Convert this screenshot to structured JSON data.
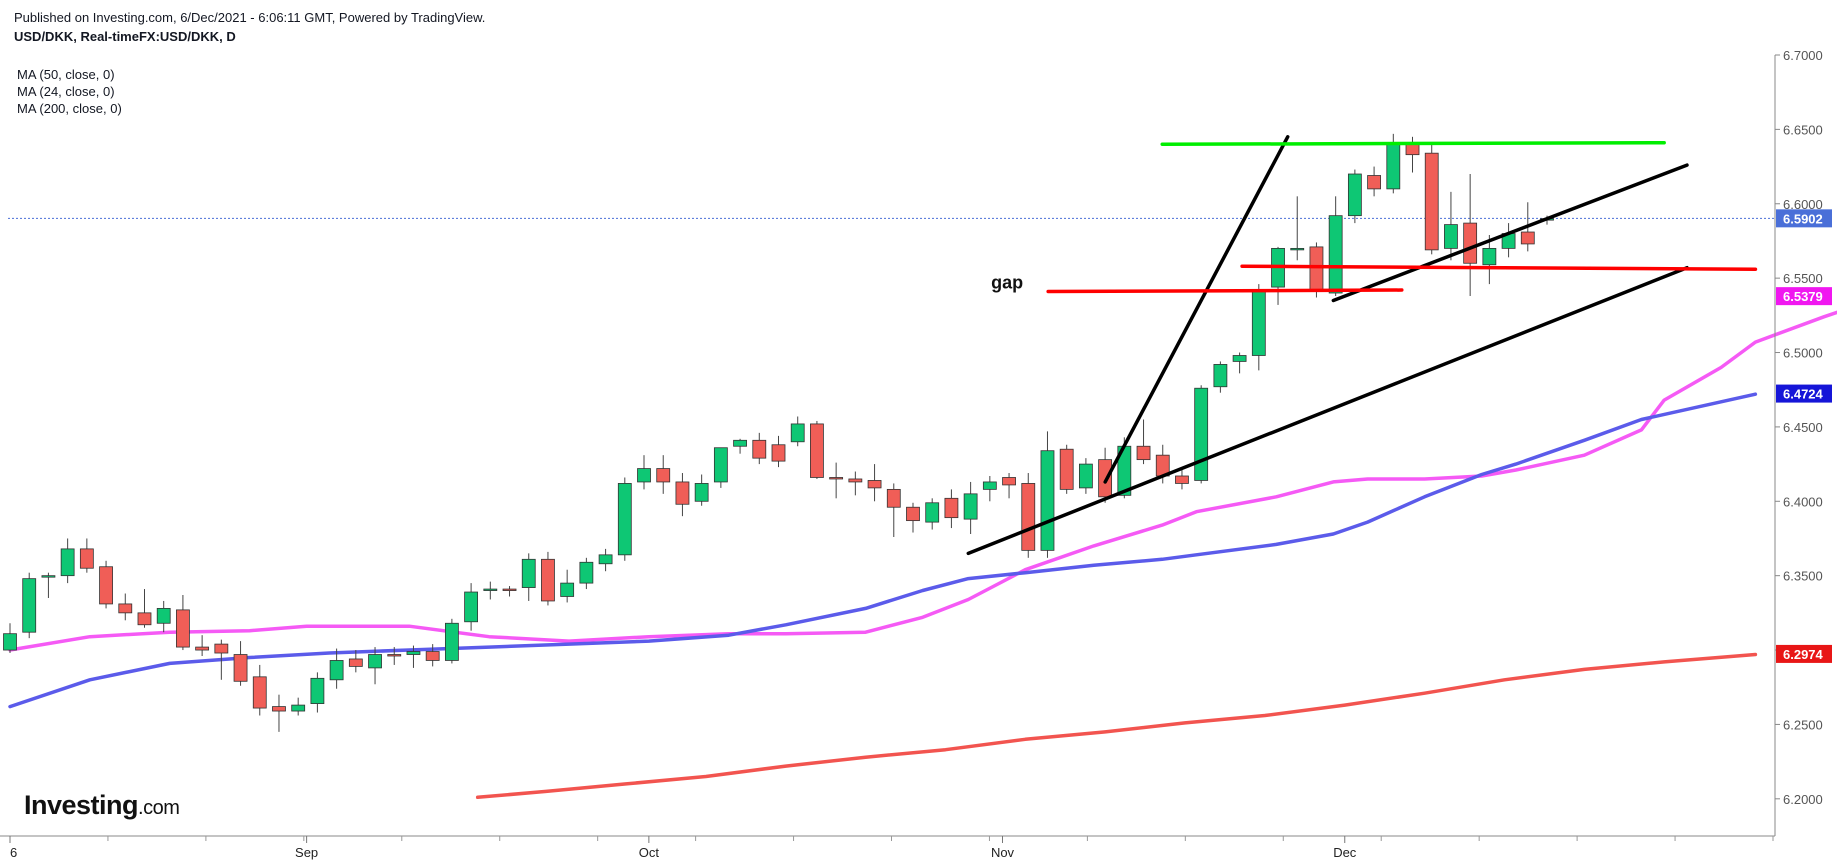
{
  "header": {
    "published": "Published on Investing.com, 6/Dec/2021 - 6:06:11 GMT, Powered by TradingView.",
    "symbol": "USD/DKK, Real-timeFX:USD/DKK, D"
  },
  "indicators": [
    {
      "label": "MA (50, close, 0)",
      "color": "#5b5bea"
    },
    {
      "label": "MA (24, close, 0)",
      "color": "#f55af5"
    },
    {
      "label": "MA (200, close, 0)",
      "color": "#f2544f"
    }
  ],
  "logo": {
    "name": "Investing",
    "suffix": ".com"
  },
  "chart_data": {
    "type": "candlestick",
    "title": "USD/DKK, Real-timeFX:USD/DKK, D",
    "x_ticks": [
      {
        "label": "6",
        "date": "2021-08-06"
      },
      {
        "label": "Sep",
        "date": "2021-09-01"
      },
      {
        "label": "Oct",
        "date": "2021-10-01"
      },
      {
        "label": "Nov",
        "date": "2021-11-01"
      },
      {
        "label": "Dec",
        "date": "2021-12-01"
      }
    ],
    "x_range": [
      "2021-08-06",
      "2021-12-31"
    ],
    "y_ticks": [
      "6.7000",
      "6.6500",
      "6.6000",
      "6.5500",
      "6.5000",
      "6.4500",
      "6.4000",
      "6.3500",
      "6.3000",
      "6.2500",
      "6.2000"
    ],
    "ylim": [
      6.175,
      6.7
    ],
    "last_price": "6.5902",
    "price_badges": [
      {
        "value": "6.5902",
        "color": "#4a6fd8"
      },
      {
        "value": "6.5379",
        "color": "#f017f0"
      },
      {
        "value": "6.4724",
        "color": "#1515d8"
      },
      {
        "value": "6.2974",
        "color": "#e81616"
      }
    ],
    "candles": [
      {
        "date": "2021-08-06",
        "o": 6.3,
        "h": 6.318,
        "l": 6.298,
        "c": 6.311
      },
      {
        "date": "2021-08-09",
        "o": 6.312,
        "h": 6.352,
        "l": 6.308,
        "c": 6.348
      },
      {
        "date": "2021-08-10",
        "o": 6.349,
        "h": 6.352,
        "l": 6.335,
        "c": 6.35
      },
      {
        "date": "2021-08-11",
        "o": 6.35,
        "h": 6.375,
        "l": 6.345,
        "c": 6.368
      },
      {
        "date": "2021-08-12",
        "o": 6.368,
        "h": 6.375,
        "l": 6.352,
        "c": 6.355
      },
      {
        "date": "2021-08-13",
        "o": 6.356,
        "h": 6.36,
        "l": 6.328,
        "c": 6.331
      },
      {
        "date": "2021-08-16",
        "o": 6.331,
        "h": 6.338,
        "l": 6.32,
        "c": 6.325
      },
      {
        "date": "2021-08-17",
        "o": 6.325,
        "h": 6.341,
        "l": 6.315,
        "c": 6.317
      },
      {
        "date": "2021-08-18",
        "o": 6.318,
        "h": 6.333,
        "l": 6.312,
        "c": 6.328
      },
      {
        "date": "2021-08-19",
        "o": 6.327,
        "h": 6.337,
        "l": 6.3,
        "c": 6.302
      },
      {
        "date": "2021-08-20",
        "o": 6.302,
        "h": 6.31,
        "l": 6.296,
        "c": 6.3
      },
      {
        "date": "2021-08-23",
        "o": 6.304,
        "h": 6.307,
        "l": 6.28,
        "c": 6.298
      },
      {
        "date": "2021-08-24",
        "o": 6.297,
        "h": 6.306,
        "l": 6.276,
        "c": 6.279
      },
      {
        "date": "2021-08-25",
        "o": 6.282,
        "h": 6.29,
        "l": 6.256,
        "c": 6.261
      },
      {
        "date": "2021-08-26",
        "o": 6.262,
        "h": 6.27,
        "l": 6.245,
        "c": 6.259
      },
      {
        "date": "2021-08-27",
        "o": 6.259,
        "h": 6.268,
        "l": 6.256,
        "c": 6.263
      },
      {
        "date": "2021-08-30",
        "o": 6.264,
        "h": 6.285,
        "l": 6.258,
        "c": 6.281
      },
      {
        "date": "2021-08-31",
        "o": 6.28,
        "h": 6.301,
        "l": 6.274,
        "c": 6.293
      },
      {
        "date": "2021-09-01",
        "o": 6.294,
        "h": 6.3,
        "l": 6.285,
        "c": 6.289
      },
      {
        "date": "2021-09-02",
        "o": 6.288,
        "h": 6.302,
        "l": 6.277,
        "c": 6.297
      },
      {
        "date": "2021-09-03",
        "o": 6.297,
        "h": 6.302,
        "l": 6.29,
        "c": 6.296
      },
      {
        "date": "2021-09-06",
        "o": 6.297,
        "h": 6.303,
        "l": 6.288,
        "c": 6.299
      },
      {
        "date": "2021-09-07",
        "o": 6.299,
        "h": 6.304,
        "l": 6.289,
        "c": 6.293
      },
      {
        "date": "2021-09-08",
        "o": 6.293,
        "h": 6.321,
        "l": 6.291,
        "c": 6.318
      },
      {
        "date": "2021-09-09",
        "o": 6.319,
        "h": 6.345,
        "l": 6.313,
        "c": 6.339
      },
      {
        "date": "2021-09-10",
        "o": 6.34,
        "h": 6.346,
        "l": 6.334,
        "c": 6.341
      },
      {
        "date": "2021-09-13",
        "o": 6.341,
        "h": 6.343,
        "l": 6.336,
        "c": 6.34
      },
      {
        "date": "2021-09-14",
        "o": 6.342,
        "h": 6.365,
        "l": 6.333,
        "c": 6.361
      },
      {
        "date": "2021-09-15",
        "o": 6.361,
        "h": 6.366,
        "l": 6.33,
        "c": 6.333
      },
      {
        "date": "2021-09-16",
        "o": 6.336,
        "h": 6.354,
        "l": 6.332,
        "c": 6.345
      },
      {
        "date": "2021-09-17",
        "o": 6.345,
        "h": 6.362,
        "l": 6.341,
        "c": 6.359
      },
      {
        "date": "2021-09-20",
        "o": 6.358,
        "h": 6.368,
        "l": 6.353,
        "c": 6.364
      },
      {
        "date": "2021-09-21",
        "o": 6.364,
        "h": 6.416,
        "l": 6.36,
        "c": 6.412
      },
      {
        "date": "2021-09-22",
        "o": 6.413,
        "h": 6.431,
        "l": 6.408,
        "c": 6.422
      },
      {
        "date": "2021-09-23",
        "o": 6.422,
        "h": 6.431,
        "l": 6.405,
        "c": 6.413
      },
      {
        "date": "2021-09-24",
        "o": 6.413,
        "h": 6.419,
        "l": 6.39,
        "c": 6.398
      },
      {
        "date": "2021-09-27",
        "o": 6.4,
        "h": 6.418,
        "l": 6.397,
        "c": 6.412
      },
      {
        "date": "2021-09-28",
        "o": 6.413,
        "h": 6.436,
        "l": 6.409,
        "c": 6.436
      },
      {
        "date": "2021-09-29",
        "o": 6.437,
        "h": 6.442,
        "l": 6.432,
        "c": 6.441
      },
      {
        "date": "2021-09-30",
        "o": 6.441,
        "h": 6.446,
        "l": 6.425,
        "c": 6.429
      },
      {
        "date": "2021-10-01",
        "o": 6.438,
        "h": 6.444,
        "l": 6.423,
        "c": 6.427
      },
      {
        "date": "2021-10-04",
        "o": 6.44,
        "h": 6.457,
        "l": 6.437,
        "c": 6.452
      },
      {
        "date": "2021-10-05",
        "o": 6.452,
        "h": 6.454,
        "l": 6.415,
        "c": 6.416
      },
      {
        "date": "2021-10-06",
        "o": 6.416,
        "h": 6.426,
        "l": 6.402,
        "c": 6.415
      },
      {
        "date": "2021-10-07",
        "o": 6.415,
        "h": 6.42,
        "l": 6.404,
        "c": 6.413
      },
      {
        "date": "2021-10-08",
        "o": 6.414,
        "h": 6.425,
        "l": 6.4,
        "c": 6.409
      },
      {
        "date": "2021-10-11",
        "o": 6.408,
        "h": 6.412,
        "l": 6.376,
        "c": 6.396
      },
      {
        "date": "2021-10-12",
        "o": 6.396,
        "h": 6.399,
        "l": 6.379,
        "c": 6.387
      },
      {
        "date": "2021-10-13",
        "o": 6.386,
        "h": 6.402,
        "l": 6.381,
        "c": 6.399
      },
      {
        "date": "2021-10-14",
        "o": 6.402,
        "h": 6.408,
        "l": 6.382,
        "c": 6.389
      },
      {
        "date": "2021-10-15",
        "o": 6.388,
        "h": 6.413,
        "l": 6.378,
        "c": 6.405
      },
      {
        "date": "2021-10-18",
        "o": 6.408,
        "h": 6.417,
        "l": 6.4,
        "c": 6.413
      },
      {
        "date": "2021-10-19",
        "o": 6.416,
        "h": 6.419,
        "l": 6.402,
        "c": 6.411
      },
      {
        "date": "2021-10-20",
        "o": 6.412,
        "h": 6.419,
        "l": 6.362,
        "c": 6.367
      },
      {
        "date": "2021-10-21",
        "o": 6.367,
        "h": 6.447,
        "l": 6.362,
        "c": 6.434
      },
      {
        "date": "2021-10-22",
        "o": 6.435,
        "h": 6.438,
        "l": 6.405,
        "c": 6.408
      },
      {
        "date": "2021-10-25",
        "o": 6.409,
        "h": 6.429,
        "l": 6.405,
        "c": 6.425
      },
      {
        "date": "2021-10-26",
        "o": 6.428,
        "h": 6.436,
        "l": 6.399,
        "c": 6.403
      },
      {
        "date": "2021-10-27",
        "o": 6.404,
        "h": 6.443,
        "l": 6.402,
        "c": 6.437
      },
      {
        "date": "2021-10-28",
        "o": 6.437,
        "h": 6.455,
        "l": 6.425,
        "c": 6.428
      },
      {
        "date": "2021-10-29",
        "o": 6.431,
        "h": 6.438,
        "l": 6.412,
        "c": 6.417
      },
      {
        "date": "2021-11-01",
        "o": 6.417,
        "h": 6.422,
        "l": 6.408,
        "c": 6.412
      },
      {
        "date": "2021-11-02",
        "o": 6.414,
        "h": 6.478,
        "l": 6.412,
        "c": 6.476
      },
      {
        "date": "2021-11-03",
        "o": 6.477,
        "h": 6.494,
        "l": 6.473,
        "c": 6.492
      },
      {
        "date": "2021-11-04",
        "o": 6.494,
        "h": 6.5,
        "l": 6.486,
        "c": 6.498
      },
      {
        "date": "2021-11-05",
        "o": 6.498,
        "h": 6.546,
        "l": 6.488,
        "c": 6.542
      },
      {
        "date": "2021-11-08",
        "o": 6.544,
        "h": 6.571,
        "l": 6.532,
        "c": 6.57
      },
      {
        "date": "2021-11-09",
        "o": 6.57,
        "h": 6.605,
        "l": 6.562,
        "c": 6.57
      },
      {
        "date": "2021-11-10",
        "o": 6.571,
        "h": 6.574,
        "l": 6.537,
        "c": 6.541
      },
      {
        "date": "2021-11-11",
        "o": 6.54,
        "h": 6.605,
        "l": 6.538,
        "c": 6.592
      },
      {
        "date": "2021-11-12",
        "o": 6.592,
        "h": 6.623,
        "l": 6.587,
        "c": 6.62
      },
      {
        "date": "2021-11-15",
        "o": 6.619,
        "h": 6.625,
        "l": 6.605,
        "c": 6.61
      },
      {
        "date": "2021-11-16",
        "o": 6.61,
        "h": 6.647,
        "l": 6.607,
        "c": 6.64
      },
      {
        "date": "2021-11-17",
        "o": 6.641,
        "h": 6.645,
        "l": 6.621,
        "c": 6.633
      },
      {
        "date": "2021-11-18",
        "o": 6.634,
        "h": 6.64,
        "l": 6.566,
        "c": 6.569
      },
      {
        "date": "2021-11-19",
        "o": 6.57,
        "h": 6.608,
        "l": 6.562,
        "c": 6.586
      },
      {
        "date": "2021-11-22",
        "o": 6.587,
        "h": 6.62,
        "l": 6.538,
        "c": 6.56
      },
      {
        "date": "2021-11-23",
        "o": 6.559,
        "h": 6.579,
        "l": 6.546,
        "c": 6.57
      },
      {
        "date": "2021-11-24",
        "o": 6.57,
        "h": 6.587,
        "l": 6.564,
        "c": 6.58
      },
      {
        "date": "2021-11-25",
        "o": 6.581,
        "h": 6.601,
        "l": 6.568,
        "c": 6.573
      },
      {
        "date": "2021-11-26",
        "o": 6.589,
        "h": 6.592,
        "l": 6.586,
        "c": 6.59
      }
    ],
    "moving_averages": [
      {
        "name": "MA (24, close, 0)",
        "color": "#f55af5",
        "points": [
          [
            "2021-08-06",
            6.3
          ],
          [
            "2021-08-13",
            6.309
          ],
          [
            "2021-08-20",
            6.312
          ],
          [
            "2021-08-27",
            6.313
          ],
          [
            "2021-09-01",
            6.316
          ],
          [
            "2021-09-10",
            6.316
          ],
          [
            "2021-09-17",
            6.309
          ],
          [
            "2021-09-24",
            6.306
          ],
          [
            "2021-10-01",
            6.309
          ],
          [
            "2021-10-08",
            6.311
          ],
          [
            "2021-10-13",
            6.311
          ],
          [
            "2021-10-20",
            6.312
          ],
          [
            "2021-10-25",
            6.322
          ],
          [
            "2021-10-29",
            6.334
          ],
          [
            "2021-11-03",
            6.354
          ],
          [
            "2021-11-09",
            6.37
          ],
          [
            "2021-11-15",
            6.384
          ],
          [
            "2021-11-18",
            6.393
          ],
          [
            "2021-11-25",
            6.403
          ],
          [
            "2021-11-30",
            6.413
          ],
          [
            "2021-12-03",
            6.415
          ],
          [
            "2021-12-08",
            6.415
          ],
          [
            "2021-12-13",
            6.417
          ],
          [
            "2021-12-16",
            6.421
          ],
          [
            "2021-12-22",
            6.431
          ],
          [
            "2021-12-27",
            6.448
          ],
          [
            "2021-12-29",
            6.468
          ],
          [
            "2022-01-03",
            6.49
          ],
          [
            "2022-01-06",
            6.507
          ],
          [
            "2022-01-12",
            6.524
          ],
          [
            "2022-01-17",
            6.537
          ]
        ]
      },
      {
        "name": "MA (50, close, 0)",
        "color": "#5b5bea",
        "points": [
          [
            "2021-08-06",
            6.262
          ],
          [
            "2021-08-13",
            6.28
          ],
          [
            "2021-08-20",
            6.291
          ],
          [
            "2021-08-27",
            6.295
          ],
          [
            "2021-09-03",
            6.298
          ],
          [
            "2021-09-10",
            6.3
          ],
          [
            "2021-09-17",
            6.302
          ],
          [
            "2021-09-24",
            6.304
          ],
          [
            "2021-10-01",
            6.306
          ],
          [
            "2021-10-08",
            6.31
          ],
          [
            "2021-10-13",
            6.317
          ],
          [
            "2021-10-20",
            6.328
          ],
          [
            "2021-10-25",
            6.34
          ],
          [
            "2021-10-29",
            6.348
          ],
          [
            "2021-11-03",
            6.352
          ],
          [
            "2021-11-09",
            6.357
          ],
          [
            "2021-11-15",
            6.361
          ],
          [
            "2021-11-18",
            6.364
          ],
          [
            "2021-11-25",
            6.371
          ],
          [
            "2021-11-30",
            6.378
          ],
          [
            "2021-12-03",
            6.386
          ],
          [
            "2021-12-08",
            6.403
          ],
          [
            "2021-12-13",
            6.418
          ],
          [
            "2021-12-16",
            6.425
          ],
          [
            "2021-12-22",
            6.441
          ],
          [
            "2021-12-27",
            6.455
          ],
          [
            "2022-01-06",
            6.472
          ]
        ]
      },
      {
        "name": "MA (200, close, 0)",
        "color": "#f2544f",
        "points": [
          [
            "2021-09-16",
            6.201
          ],
          [
            "2021-09-22",
            6.205
          ],
          [
            "2021-09-29",
            6.21
          ],
          [
            "2021-10-06",
            6.215
          ],
          [
            "2021-10-13",
            6.222
          ],
          [
            "2021-10-20",
            6.228
          ],
          [
            "2021-10-27",
            6.233
          ],
          [
            "2021-11-03",
            6.24
          ],
          [
            "2021-11-10",
            6.245
          ],
          [
            "2021-11-17",
            6.251
          ],
          [
            "2021-11-24",
            6.256
          ],
          [
            "2021-12-01",
            6.263
          ],
          [
            "2021-12-08",
            6.271
          ],
          [
            "2021-12-15",
            6.28
          ],
          [
            "2021-12-22",
            6.287
          ],
          [
            "2021-12-29",
            6.292
          ],
          [
            "2022-01-06",
            6.297
          ]
        ]
      }
    ],
    "drawn_lines": [
      {
        "color": "#000000",
        "from": [
          "2021-10-29",
          6.365
        ],
        "to": [
          "2021-12-31",
          6.557
        ]
      },
      {
        "color": "#000000",
        "from": [
          "2021-11-10",
          6.413
        ],
        "to": [
          "2021-11-26",
          6.645
        ]
      },
      {
        "color": "#000000",
        "from": [
          "2021-11-30",
          6.535
        ],
        "to": [
          "2021-12-31",
          6.626
        ]
      },
      {
        "color": "#00ee00",
        "from": [
          "2021-11-15",
          6.64
        ],
        "to": [
          "2021-12-29",
          6.641
        ]
      },
      {
        "color": "#ff0000",
        "from": [
          "2021-11-05",
          6.541
        ],
        "to": [
          "2021-12-06",
          6.542
        ]
      },
      {
        "color": "#ff0000",
        "from": [
          "2021-11-22",
          6.558
        ],
        "to": [
          "2022-01-06",
          6.556
        ]
      }
    ],
    "annotations": [
      {
        "text": "gap",
        "x": "2021-10-31",
        "y": 6.543
      }
    ],
    "last_price_line": {
      "value": 6.5902,
      "color": "#4a6fd8"
    },
    "up_color": "#0ec774",
    "down_color": "#f05e57"
  }
}
